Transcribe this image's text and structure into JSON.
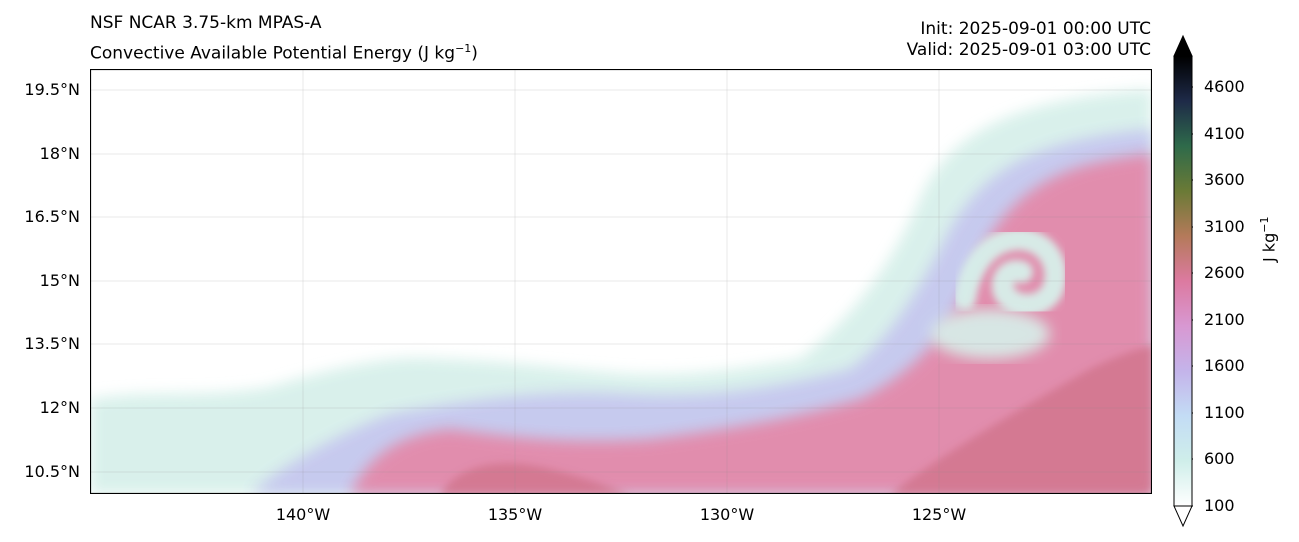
{
  "header": {
    "model": "NSF NCAR 3.75-km MPAS-A",
    "variable_base": "Convective Available Potential Energy (J kg",
    "variable_exp": "−1",
    "variable_close": ")",
    "init": "Init: 2025-09-01 00:00 UTC",
    "valid": "Valid: 2025-09-01 03:00 UTC"
  },
  "axes": {
    "lat_labels": [
      "19.5°N",
      "18°N",
      "16.5°N",
      "15°N",
      "13.5°N",
      "12°N",
      "10.5°N"
    ],
    "lon_labels": [
      "140°W",
      "135°W",
      "130°W",
      "125°W"
    ]
  },
  "colorbar": {
    "ticks": [
      "4600",
      "4100",
      "3600",
      "3100",
      "2600",
      "2100",
      "1600",
      "1100",
      "600",
      "100"
    ],
    "unit_base": "J kg",
    "unit_exp": "−1",
    "colors": [
      "#ffffff",
      "#cfeeea",
      "#c3dcf5",
      "#c4b4ea",
      "#d898d2",
      "#dc7aa0",
      "#b47a5a",
      "#6a7a36",
      "#2e6a4a",
      "#1e2a48",
      "#000000"
    ]
  },
  "map_colors": {
    "low": "#d7f0ea",
    "mid": "#c6c8ef",
    "high": "#e38aaa",
    "peak": "#d2768e"
  }
}
